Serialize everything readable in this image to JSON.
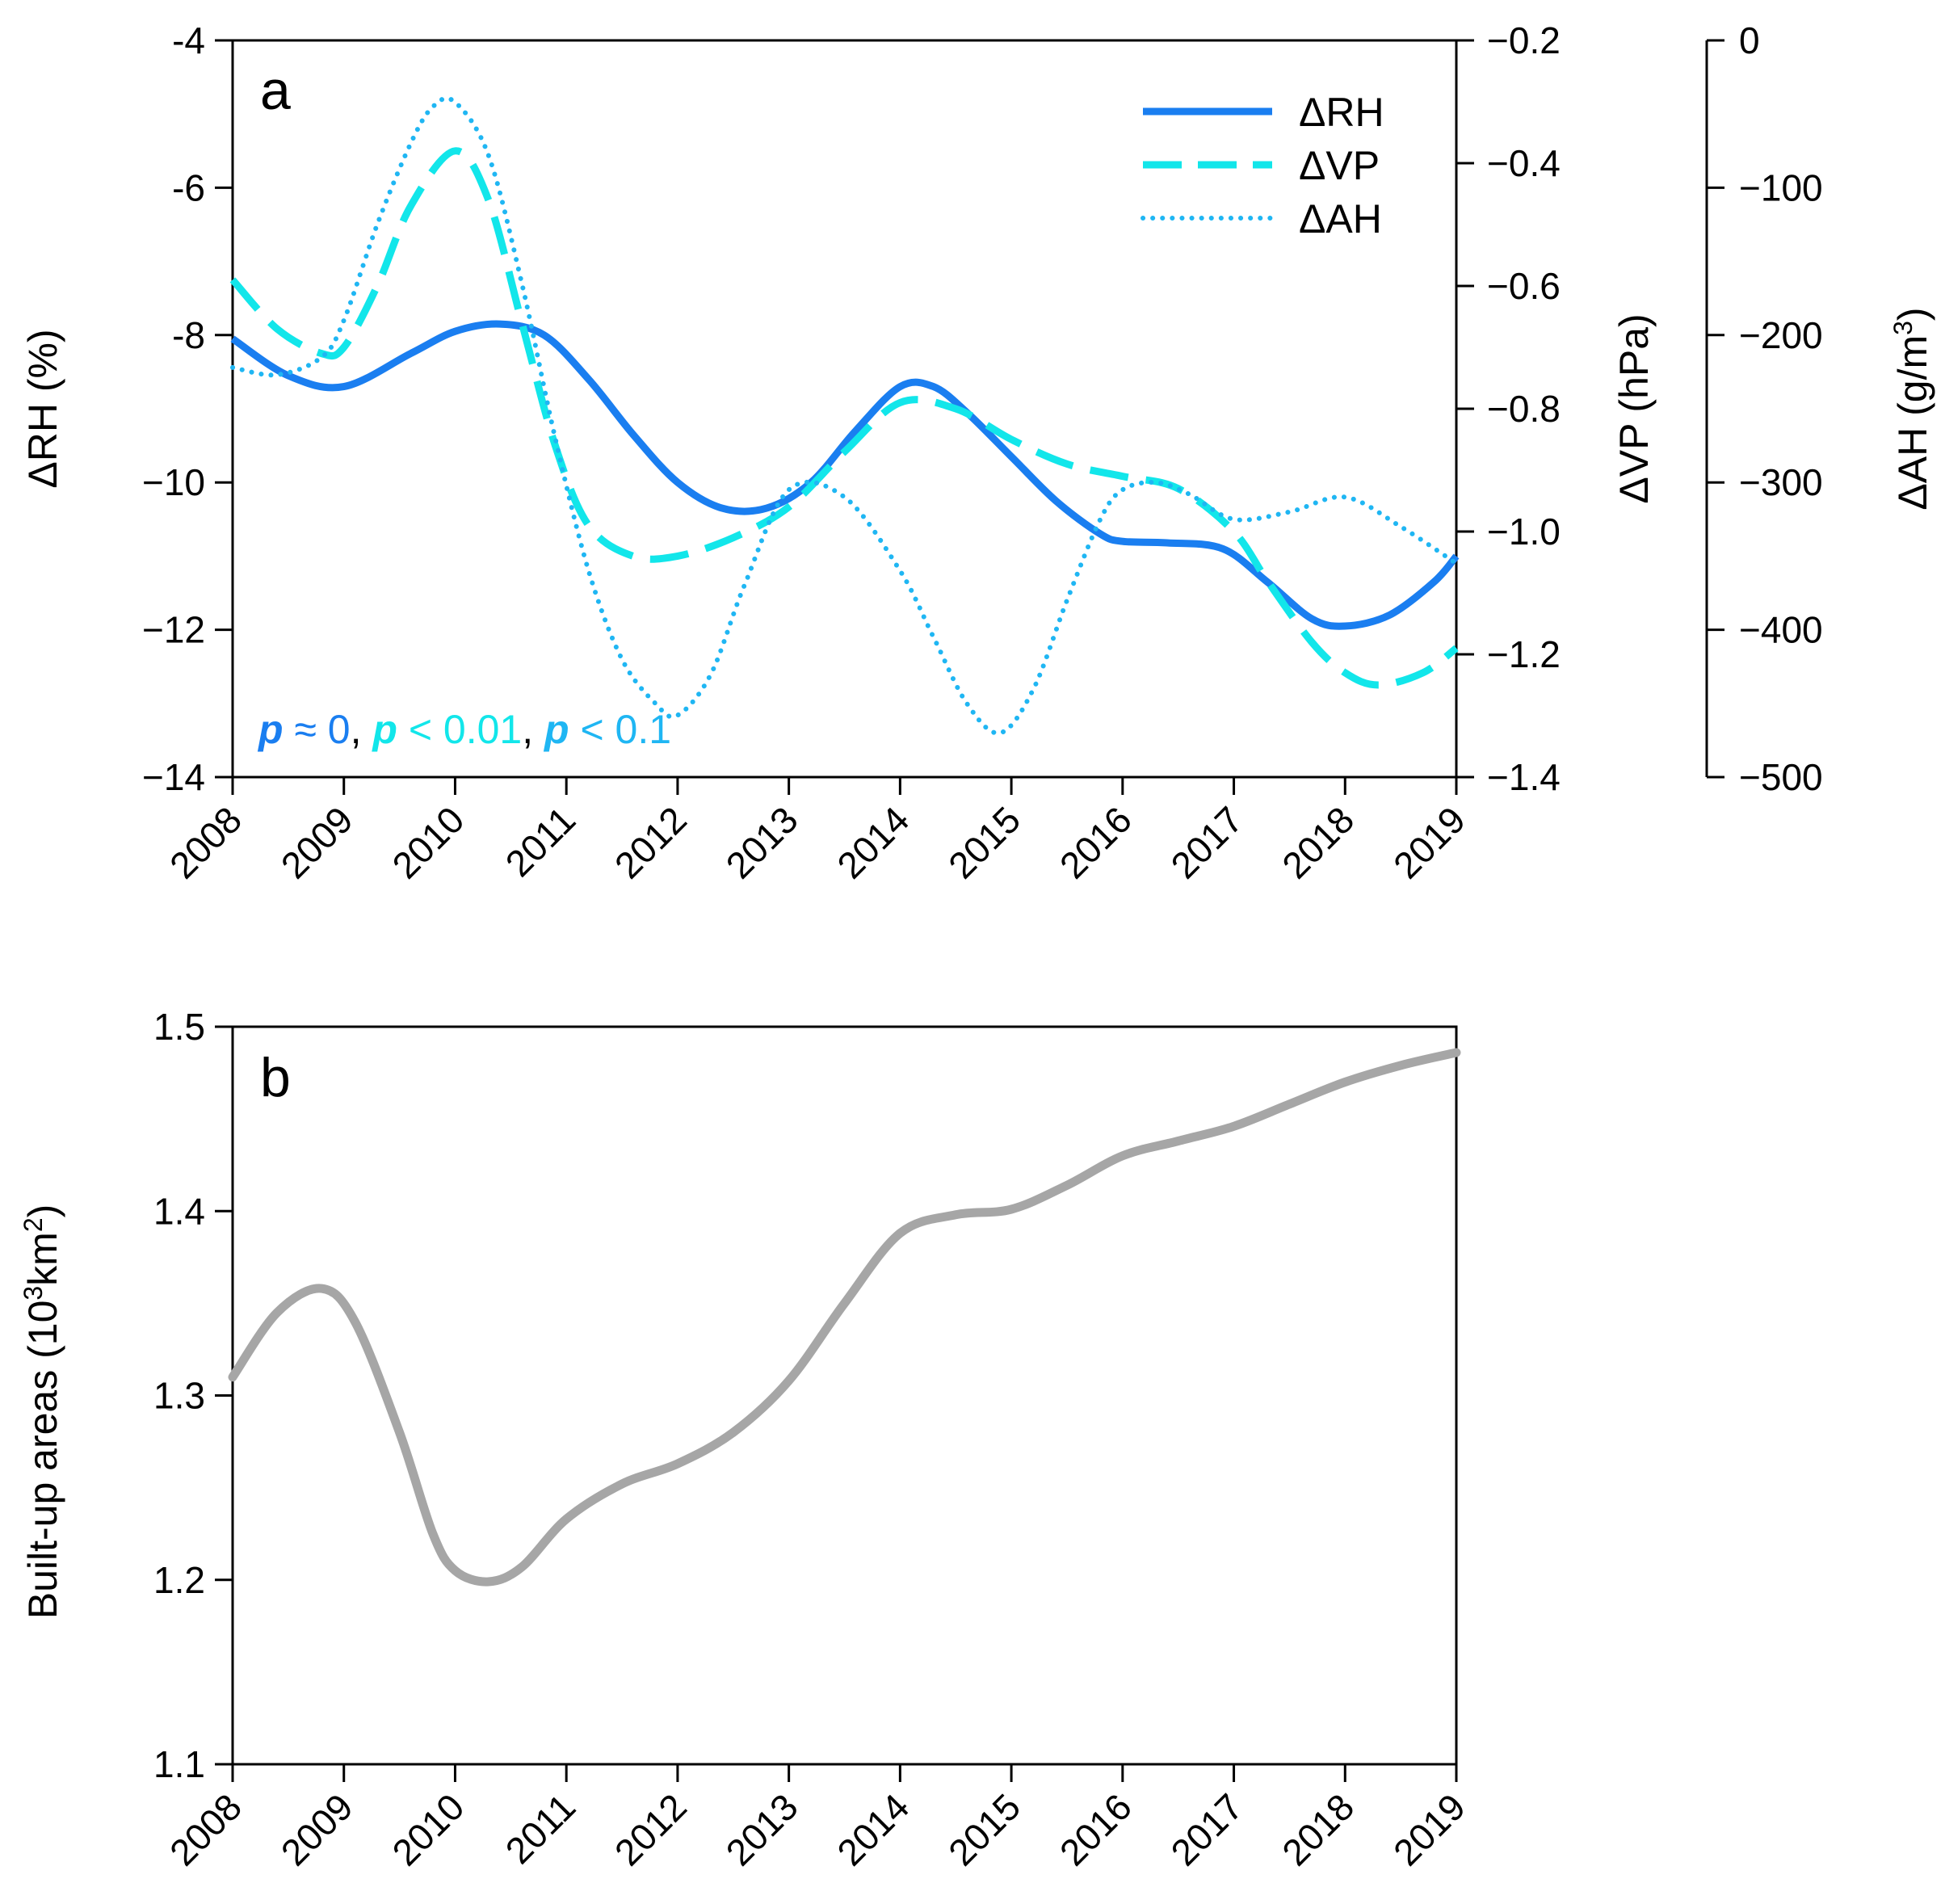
{
  "chart_data": [
    {
      "panel": "a",
      "type": "line",
      "x": [
        2008,
        2009,
        2010,
        2011,
        2012,
        2013,
        2014,
        2015,
        2016,
        2017,
        2018,
        2019
      ],
      "x_tick_labels": [
        "2008",
        "2009",
        "2010",
        "2011",
        "2012",
        "2013",
        "2014",
        "2015",
        "2016",
        "2017",
        "2018",
        "2019"
      ],
      "xlim": [
        2008,
        2019
      ],
      "left_axis": {
        "label": "ΔRH (%)",
        "ylim": [
          -14,
          -4
        ],
        "ticks": [
          -14,
          -12,
          -10,
          -8,
          -6,
          -4
        ],
        "tick_labels": [
          "−14",
          "−12",
          "−10",
          "-8",
          "-6",
          "-4"
        ]
      },
      "right_axis_1": {
        "label": "ΔVP (hPa)",
        "ylim": [
          -1.4,
          -0.2
        ],
        "ticks": [
          -1.4,
          -1.2,
          -1.0,
          -0.8,
          -0.6,
          -0.4,
          -0.2
        ],
        "tick_labels": [
          "−1.4",
          "−1.2",
          "−1.0",
          "−0.8",
          "−0.6",
          "−0.4",
          "−0.2"
        ]
      },
      "right_axis_2": {
        "label_prefix": "ΔAH (g/m",
        "label_sup": "3",
        "label_suffix": ")",
        "ylim": [
          -500,
          0
        ],
        "ticks": [
          -500,
          -400,
          -300,
          -200,
          -100,
          0
        ],
        "tick_labels": [
          "−500",
          "−400",
          "−300",
          "−200",
          "−100",
          "0"
        ]
      },
      "series": [
        {
          "name": "ΔRH",
          "axis": "left",
          "style": "solid",
          "color": "#1a7ef0",
          "x": [
            2008,
            2008.5,
            2009,
            2009.6,
            2010,
            2010.4,
            2010.8,
            2011.2,
            2011.6,
            2012,
            2012.4,
            2012.8,
            2013.2,
            2013.6,
            2014,
            2014.3,
            2014.6,
            2015,
            2015.4,
            2015.8,
            2016,
            2016.4,
            2016.9,
            2017.3,
            2017.7,
            2018,
            2018.4,
            2018.8,
            2019
          ],
          "values": [
            -8.05,
            -8.55,
            -8.7,
            -8.25,
            -7.95,
            -7.85,
            -8.0,
            -8.6,
            -9.35,
            -10.0,
            -10.35,
            -10.35,
            -10.0,
            -9.3,
            -8.7,
            -8.7,
            -9.05,
            -9.65,
            -10.25,
            -10.7,
            -10.8,
            -10.82,
            -10.9,
            -11.35,
            -11.85,
            -11.95,
            -11.8,
            -11.35,
            -11.0
          ]
        },
        {
          "name": "ΔVP",
          "axis": "right_1",
          "style": "dashed",
          "color": "#12e6ea",
          "x": [
            2008,
            2008.4,
            2008.8,
            2009,
            2009.3,
            2009.6,
            2010,
            2010.3,
            2010.6,
            2010.9,
            2011.2,
            2011.6,
            2012,
            2012.5,
            2013,
            2013.5,
            2014,
            2014.5,
            2015,
            2015.5,
            2016,
            2016.5,
            2017,
            2017.3,
            2017.7,
            2018,
            2018.3,
            2018.7,
            2019
          ],
          "values": [
            -0.59,
            -0.67,
            -0.71,
            -0.7,
            -0.6,
            -0.47,
            -0.38,
            -0.46,
            -0.66,
            -0.86,
            -0.99,
            -1.04,
            -1.04,
            -1.01,
            -0.96,
            -0.87,
            -0.79,
            -0.8,
            -0.85,
            -0.89,
            -0.91,
            -0.93,
            -1.0,
            -1.08,
            -1.18,
            -1.23,
            -1.25,
            -1.23,
            -1.19
          ]
        },
        {
          "name": "ΔAH",
          "axis": "right_2",
          "style": "dotted",
          "color": "#1fb6f3",
          "x": [
            2008,
            2008.4,
            2008.8,
            2009,
            2009.3,
            2009.6,
            2009.8,
            2010,
            2010.3,
            2010.6,
            2010.9,
            2011.2,
            2011.5,
            2011.8,
            2012,
            2012.3,
            2012.6,
            2013,
            2013.5,
            2014,
            2014.3,
            2014.6,
            2014.9,
            2015.2,
            2015.5,
            2015.8,
            2016,
            2016.3,
            2016.6,
            2017,
            2017.5,
            2018,
            2018.5,
            2019
          ],
          "values": [
            -222,
            -227,
            -215,
            -190,
            -125,
            -70,
            -45,
            -42,
            -78,
            -165,
            -270,
            -360,
            -420,
            -450,
            -458,
            -430,
            -370,
            -305,
            -310,
            -360,
            -405,
            -450,
            -470,
            -440,
            -380,
            -325,
            -305,
            -300,
            -308,
            -325,
            -320,
            -310,
            -330,
            -355
          ]
        }
      ],
      "annotation": [
        {
          "text": "p",
          "italic": true,
          "color": "#1a7ef0"
        },
        {
          "text": " ≈ 0",
          "italic": false,
          "color": "#1a7ef0"
        },
        {
          "text": ", ",
          "italic": false,
          "color": "#000000"
        },
        {
          "text": "p",
          "italic": true,
          "color": "#12e6ea"
        },
        {
          "text": " < 0.01",
          "italic": false,
          "color": "#12e6ea"
        },
        {
          "text": ", ",
          "italic": false,
          "color": "#000000"
        },
        {
          "text": "p",
          "italic": true,
          "color": "#1fb6f3"
        },
        {
          "text": " < 0.1",
          "italic": false,
          "color": "#1fb6f3"
        }
      ],
      "legend_position": "top-right"
    },
    {
      "panel": "b",
      "type": "line",
      "x_tick_labels": [
        "2008",
        "2009",
        "2010",
        "2011",
        "2012",
        "2013",
        "2014",
        "2015",
        "2016",
        "2017",
        "2018",
        "2019"
      ],
      "xlim": [
        2008,
        2019
      ],
      "ylabel_prefix": "Built-up areas (10",
      "ylabel_sup1": "3",
      "ylabel_mid": "km",
      "ylabel_sup2": "2",
      "ylabel_suffix": ")",
      "ylim": [
        1.1,
        1.5
      ],
      "ticks": [
        1.1,
        1.2,
        1.3,
        1.4,
        1.5
      ],
      "tick_labels": [
        "1.1",
        "1.2",
        "1.3",
        "1.4",
        "1.5"
      ],
      "series": [
        {
          "name": "Built-up areas",
          "color": "#a6a6a6",
          "x": [
            2008,
            2008.4,
            2008.8,
            2009.1,
            2009.5,
            2009.8,
            2010,
            2010.3,
            2010.6,
            2011,
            2011.5,
            2012,
            2012.5,
            2013,
            2013.5,
            2014,
            2014.5,
            2015,
            2015.5,
            2016,
            2016.5,
            2017,
            2017.5,
            2018,
            2018.5,
            2019
          ],
          "values": [
            1.31,
            1.345,
            1.358,
            1.34,
            1.28,
            1.225,
            1.205,
            1.199,
            1.207,
            1.233,
            1.252,
            1.263,
            1.28,
            1.308,
            1.35,
            1.388,
            1.398,
            1.401,
            1.414,
            1.43,
            1.438,
            1.446,
            1.458,
            1.47,
            1.479,
            1.486
          ]
        }
      ]
    }
  ]
}
